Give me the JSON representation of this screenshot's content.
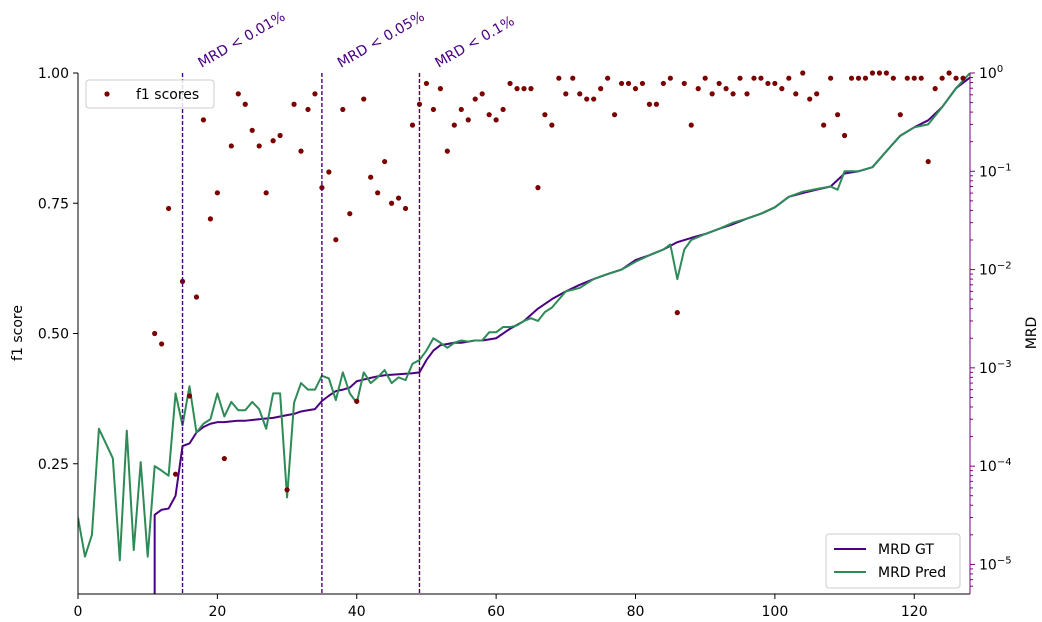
{
  "chart_data": {
    "type": "scatter+line",
    "title": "",
    "xlabel": "",
    "ylabel_left": "f1 score",
    "ylabel_right": "MRD",
    "xlim": [
      0,
      128
    ],
    "ylim_left": [
      0.0,
      1.0
    ],
    "ylim_right_log": [
      5e-06,
      1.0
    ],
    "right_scale": "log",
    "grid": false,
    "x_ticks": [
      0,
      20,
      40,
      60,
      80,
      100,
      120
    ],
    "x_tick_labels": [
      "0",
      "20",
      "40",
      "60",
      "80",
      "100",
      "120"
    ],
    "y_left_ticks": [
      0.25,
      0.5,
      0.75,
      1.0
    ],
    "y_left_tick_labels": [
      "0.25",
      "0.50",
      "0.75",
      "1.00"
    ],
    "y_right_ticks": [
      1e-05,
      0.0001,
      0.001,
      0.01,
      0.1,
      1
    ],
    "y_right_tick_labels": [
      {
        "base": "10",
        "exp": "−5"
      },
      {
        "base": "10",
        "exp": "−4"
      },
      {
        "base": "10",
        "exp": "−3"
      },
      {
        "base": "10",
        "exp": "−2"
      },
      {
        "base": "10",
        "exp": "−1"
      },
      {
        "base": "10",
        "exp": "0"
      }
    ],
    "vlines": [
      {
        "x": 15,
        "label": "MRD < 0.01%"
      },
      {
        "x": 35,
        "label": "MRD < 0.05%"
      },
      {
        "x": 49,
        "label": "MRD < 0.1%"
      }
    ],
    "colors": {
      "scatter": "#7b0000",
      "mrd_gt": "#4b0082",
      "mrd_pred": "#2e8b57",
      "vline": "#4b0082",
      "right_axis": "#800080"
    },
    "legend_top": {
      "placement": "upper-left",
      "entries": [
        "f1 scores"
      ]
    },
    "legend_bottom": {
      "placement": "lower-right",
      "entries": [
        "MRD GT",
        "MRD Pred"
      ]
    },
    "series": [
      {
        "name": "f1 scores",
        "kind": "scatter",
        "axis": "left",
        "points": [
          [
            11,
            0.5
          ],
          [
            12,
            0.48
          ],
          [
            13,
            0.74
          ],
          [
            14,
            0.23
          ],
          [
            15,
            0.6
          ],
          [
            16,
            0.38
          ],
          [
            17,
            0.57
          ],
          [
            18,
            0.91
          ],
          [
            19,
            0.72
          ],
          [
            20,
            0.77
          ],
          [
            21,
            0.26
          ],
          [
            22,
            0.86
          ],
          [
            23,
            0.96
          ],
          [
            24,
            0.94
          ],
          [
            25,
            0.89
          ],
          [
            26,
            0.86
          ],
          [
            27,
            0.77
          ],
          [
            28,
            0.87
          ],
          [
            29,
            0.88
          ],
          [
            30,
            0.2
          ],
          [
            31,
            0.94
          ],
          [
            32,
            0.85
          ],
          [
            33,
            0.93
          ],
          [
            34,
            0.96
          ],
          [
            35,
            0.78
          ],
          [
            36,
            0.81
          ],
          [
            37,
            0.68
          ],
          [
            38,
            0.93
          ],
          [
            39,
            0.73
          ],
          [
            40,
            0.37
          ],
          [
            41,
            0.95
          ],
          [
            42,
            0.8
          ],
          [
            43,
            0.77
          ],
          [
            44,
            0.83
          ],
          [
            45,
            0.75
          ],
          [
            46,
            0.76
          ],
          [
            47,
            0.74
          ],
          [
            48,
            0.9
          ],
          [
            49,
            0.94
          ],
          [
            50,
            0.98
          ],
          [
            51,
            0.93
          ],
          [
            52,
            0.97
          ],
          [
            53,
            0.85
          ],
          [
            54,
            0.9
          ],
          [
            55,
            0.93
          ],
          [
            56,
            0.91
          ],
          [
            57,
            0.95
          ],
          [
            58,
            0.96
          ],
          [
            59,
            0.92
          ],
          [
            60,
            0.91
          ],
          [
            61,
            0.93
          ],
          [
            62,
            0.98
          ],
          [
            63,
            0.97
          ],
          [
            64,
            0.97
          ],
          [
            65,
            0.97
          ],
          [
            66,
            0.78
          ],
          [
            67,
            0.92
          ],
          [
            68,
            0.9
          ],
          [
            69,
            0.99
          ],
          [
            70,
            0.96
          ],
          [
            71,
            0.99
          ],
          [
            72,
            0.96
          ],
          [
            73,
            0.95
          ],
          [
            74,
            0.95
          ],
          [
            75,
            0.97
          ],
          [
            76,
            0.99
          ],
          [
            77,
            0.92
          ],
          [
            78,
            0.98
          ],
          [
            79,
            0.98
          ],
          [
            80,
            0.97
          ],
          [
            81,
            0.98
          ],
          [
            82,
            0.94
          ],
          [
            83,
            0.94
          ],
          [
            84,
            0.98
          ],
          [
            85,
            0.99
          ],
          [
            86,
            0.54
          ],
          [
            87,
            0.98
          ],
          [
            88,
            0.9
          ],
          [
            89,
            0.97
          ],
          [
            90,
            0.99
          ],
          [
            91,
            0.96
          ],
          [
            92,
            0.98
          ],
          [
            93,
            0.97
          ],
          [
            94,
            0.96
          ],
          [
            95,
            0.99
          ],
          [
            96,
            0.96
          ],
          [
            97,
            0.99
          ],
          [
            98,
            0.99
          ],
          [
            99,
            0.98
          ],
          [
            100,
            0.98
          ],
          [
            101,
            0.97
          ],
          [
            102,
            0.99
          ],
          [
            103,
            0.96
          ],
          [
            104,
            1.0
          ],
          [
            105,
            0.95
          ],
          [
            106,
            0.96
          ],
          [
            107,
            0.9
          ],
          [
            108,
            0.99
          ],
          [
            109,
            0.92
          ],
          [
            110,
            0.88
          ],
          [
            111,
            0.99
          ],
          [
            112,
            0.99
          ],
          [
            113,
            0.99
          ],
          [
            114,
            1.0
          ],
          [
            115,
            1.0
          ],
          [
            116,
            1.0
          ],
          [
            117,
            0.99
          ],
          [
            118,
            0.92
          ],
          [
            119,
            0.99
          ],
          [
            120,
            0.99
          ],
          [
            121,
            0.99
          ],
          [
            122,
            0.83
          ],
          [
            123,
            0.97
          ],
          [
            124,
            0.99
          ],
          [
            125,
            1.0
          ],
          [
            126,
            0.99
          ],
          [
            127,
            0.99
          ]
        ]
      },
      {
        "name": "MRD GT",
        "kind": "line",
        "axis": "right",
        "x": [
          11,
          11,
          12,
          13,
          14,
          15,
          16,
          17,
          18,
          19,
          20,
          21,
          22,
          23,
          24,
          25,
          26,
          27,
          28,
          29,
          30,
          31,
          32,
          33,
          34,
          35,
          36,
          37,
          38,
          39,
          40,
          41,
          42,
          43,
          44,
          45,
          46,
          47,
          48,
          49,
          50,
          51,
          52,
          53,
          54,
          55,
          56,
          57,
          58,
          59,
          60,
          62,
          64,
          66,
          68,
          70,
          72,
          74,
          76,
          78,
          80,
          82,
          84,
          86,
          88,
          90,
          92,
          94,
          96,
          98,
          100,
          102,
          104,
          106,
          108,
          110,
          112,
          114,
          116,
          118,
          120,
          122,
          124,
          126,
          128
        ],
        "y": [
          5e-06,
          3.2e-05,
          3.6e-05,
          3.7e-05,
          5e-05,
          0.00016,
          0.00017,
          0.00022,
          0.00025,
          0.00027,
          0.00028,
          0.00028,
          0.000285,
          0.00029,
          0.00029,
          0.000295,
          0.0003,
          0.000305,
          0.00031,
          0.00032,
          0.00033,
          0.00034,
          0.00036,
          0.00037,
          0.00038,
          0.00046,
          0.00052,
          0.00058,
          0.0006,
          0.00063,
          0.00073,
          0.00076,
          0.00079,
          0.00082,
          0.00084,
          0.00085,
          0.00086,
          0.00087,
          0.00088,
          0.0009,
          0.0012,
          0.0015,
          0.0017,
          0.00175,
          0.0018,
          0.0018,
          0.00185,
          0.0019,
          0.0019,
          0.00195,
          0.002,
          0.0025,
          0.003,
          0.004,
          0.005,
          0.006,
          0.007,
          0.008,
          0.009,
          0.01,
          0.0125,
          0.014,
          0.016,
          0.019,
          0.021,
          0.023,
          0.026,
          0.029,
          0.033,
          0.037,
          0.043,
          0.055,
          0.06,
          0.065,
          0.07,
          0.095,
          0.1,
          0.11,
          0.16,
          0.23,
          0.28,
          0.33,
          0.45,
          0.7,
          0.9
        ]
      },
      {
        "name": "MRD Pred",
        "kind": "line",
        "axis": "right",
        "x": [
          0,
          1,
          2,
          3,
          4,
          5,
          6,
          7,
          8,
          9,
          10,
          11,
          12,
          13,
          14,
          15,
          16,
          17,
          18,
          19,
          20,
          21,
          22,
          23,
          24,
          25,
          26,
          27,
          28,
          29,
          30,
          31,
          32,
          33,
          34,
          35,
          36,
          37,
          38,
          39,
          40,
          41,
          42,
          43,
          44,
          45,
          46,
          47,
          48,
          49,
          50,
          51,
          52,
          53,
          54,
          55,
          56,
          57,
          58,
          59,
          60,
          61,
          62,
          63,
          64,
          65,
          66,
          67,
          68,
          70,
          72,
          74,
          76,
          78,
          80,
          82,
          84,
          85,
          86,
          87,
          88,
          90,
          92,
          94,
          96,
          98,
          100,
          102,
          104,
          106,
          108,
          109,
          110,
          112,
          114,
          116,
          118,
          120,
          122,
          124,
          126,
          128
        ],
        "y": [
          3e-05,
          1.2e-05,
          2e-05,
          0.00024,
          0.00017,
          0.00012,
          1.1e-05,
          0.00023,
          1.4e-05,
          0.00011,
          1.2e-05,
          0.0001,
          9e-05,
          8e-05,
          0.00055,
          0.00026,
          0.00065,
          0.00022,
          0.00027,
          0.0003,
          0.00055,
          0.00032,
          0.00045,
          0.00037,
          0.00037,
          0.00045,
          0.00038,
          0.00024,
          0.00055,
          0.00055,
          4.8e-05,
          0.00044,
          0.0007,
          0.0006,
          0.0006,
          0.00083,
          0.00078,
          0.00047,
          0.0009,
          0.00055,
          0.00044,
          0.0009,
          0.0007,
          0.0008,
          0.00095,
          0.0007,
          0.0008,
          0.00075,
          0.0011,
          0.0012,
          0.0015,
          0.002,
          0.0018,
          0.0016,
          0.0018,
          0.0019,
          0.00185,
          0.0019,
          0.0019,
          0.0023,
          0.0023,
          0.0026,
          0.0026,
          0.0027,
          0.003,
          0.0032,
          0.003,
          0.0037,
          0.0041,
          0.006,
          0.0065,
          0.008,
          0.009,
          0.01,
          0.012,
          0.014,
          0.016,
          0.018,
          0.008,
          0.016,
          0.02,
          0.023,
          0.026,
          0.03,
          0.033,
          0.037,
          0.043,
          0.055,
          0.062,
          0.066,
          0.07,
          0.065,
          0.1,
          0.1,
          0.11,
          0.16,
          0.23,
          0.28,
          0.3,
          0.45,
          0.7,
          1.0
        ]
      }
    ]
  }
}
